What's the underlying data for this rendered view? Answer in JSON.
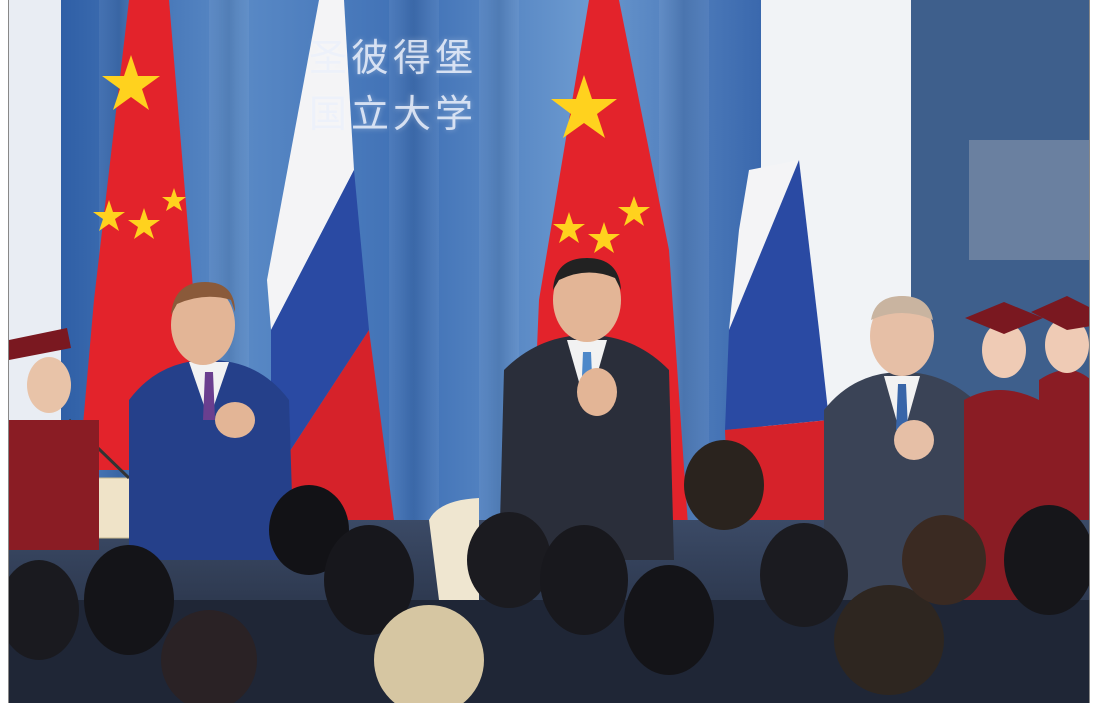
{
  "photo": {
    "signage_lines": [
      "圣彼得堡",
      "国立大学"
    ],
    "colors": {
      "curtain": "#3d6fb3",
      "china_flag_red": "#e3232b",
      "china_flag_star": "#ffd21e",
      "russia_flag_white": "#f4f4f6",
      "russia_flag_blue": "#2a4aa3",
      "russia_flag_red": "#d6222a",
      "graduation_gown": "#8a1c24"
    }
  }
}
